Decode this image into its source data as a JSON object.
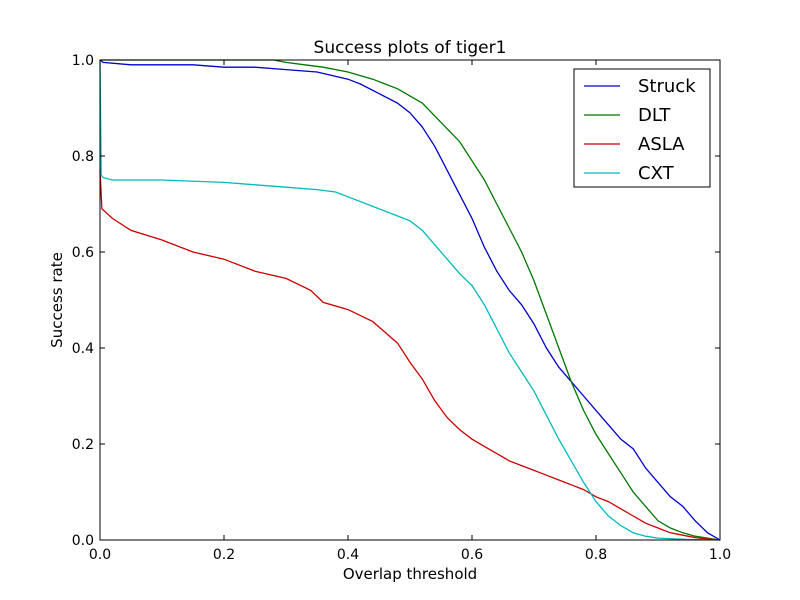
{
  "chart_data": {
    "type": "line",
    "title": "Success plots of tiger1",
    "xlabel": "Overlap threshold",
    "ylabel": "Success rate",
    "xlim": [
      0,
      1
    ],
    "ylim": [
      0,
      1
    ],
    "xticks": [
      "0.0",
      "0.2",
      "0.4",
      "0.6",
      "0.8",
      "1.0"
    ],
    "yticks": [
      "0.0",
      "0.2",
      "0.4",
      "0.6",
      "0.8",
      "1.0"
    ],
    "grid": false,
    "legend_position": "top-right",
    "series": [
      {
        "name": "Struck",
        "color": "#0000cc",
        "x": [
          0,
          0.005,
          0.05,
          0.1,
          0.15,
          0.2,
          0.25,
          0.3,
          0.35,
          0.4,
          0.42,
          0.45,
          0.48,
          0.5,
          0.52,
          0.54,
          0.56,
          0.58,
          0.6,
          0.62,
          0.64,
          0.66,
          0.68,
          0.7,
          0.72,
          0.74,
          0.76,
          0.78,
          0.8,
          0.82,
          0.84,
          0.86,
          0.88,
          0.9,
          0.92,
          0.94,
          0.96,
          0.98,
          1.0
        ],
        "y": [
          1.0,
          0.995,
          0.99,
          0.99,
          0.99,
          0.985,
          0.985,
          0.98,
          0.975,
          0.96,
          0.95,
          0.93,
          0.91,
          0.89,
          0.86,
          0.82,
          0.77,
          0.72,
          0.67,
          0.61,
          0.56,
          0.52,
          0.49,
          0.45,
          0.4,
          0.36,
          0.33,
          0.3,
          0.27,
          0.24,
          0.21,
          0.19,
          0.15,
          0.12,
          0.09,
          0.07,
          0.04,
          0.015,
          0.0
        ]
      },
      {
        "name": "DLT",
        "color": "#007700",
        "x": [
          0,
          0.005,
          0.1,
          0.2,
          0.28,
          0.3,
          0.33,
          0.36,
          0.4,
          0.44,
          0.48,
          0.52,
          0.55,
          0.58,
          0.6,
          0.62,
          0.64,
          0.66,
          0.68,
          0.7,
          0.72,
          0.74,
          0.76,
          0.78,
          0.8,
          0.82,
          0.84,
          0.86,
          0.88,
          0.9,
          0.92,
          0.94,
          0.96,
          0.98,
          1.0
        ],
        "y": [
          1.0,
          1.0,
          1.0,
          1.0,
          1.0,
          0.995,
          0.99,
          0.985,
          0.975,
          0.96,
          0.94,
          0.91,
          0.87,
          0.83,
          0.79,
          0.75,
          0.7,
          0.65,
          0.6,
          0.54,
          0.47,
          0.4,
          0.33,
          0.27,
          0.22,
          0.18,
          0.14,
          0.1,
          0.07,
          0.04,
          0.025,
          0.015,
          0.008,
          0.004,
          0.0
        ]
      },
      {
        "name": "ASLA",
        "color": "#cc0000",
        "x": [
          0,
          0.003,
          0.02,
          0.05,
          0.1,
          0.15,
          0.2,
          0.25,
          0.3,
          0.34,
          0.36,
          0.4,
          0.44,
          0.48,
          0.5,
          0.52,
          0.54,
          0.56,
          0.58,
          0.6,
          0.62,
          0.64,
          0.66,
          0.68,
          0.7,
          0.72,
          0.74,
          0.76,
          0.78,
          0.8,
          0.82,
          0.84,
          0.86,
          0.88,
          0.9,
          0.92,
          0.94,
          0.96,
          0.98,
          1.0
        ],
        "y": [
          0.77,
          0.69,
          0.67,
          0.645,
          0.625,
          0.6,
          0.585,
          0.56,
          0.545,
          0.52,
          0.495,
          0.48,
          0.455,
          0.41,
          0.37,
          0.335,
          0.29,
          0.255,
          0.23,
          0.21,
          0.195,
          0.18,
          0.165,
          0.155,
          0.145,
          0.135,
          0.125,
          0.115,
          0.105,
          0.09,
          0.08,
          0.065,
          0.05,
          0.035,
          0.025,
          0.015,
          0.01,
          0.005,
          0.002,
          0.0
        ]
      },
      {
        "name": "CXT",
        "color": "#00bbbb",
        "x": [
          0,
          0.002,
          0.005,
          0.02,
          0.1,
          0.2,
          0.25,
          0.3,
          0.35,
          0.38,
          0.4,
          0.44,
          0.48,
          0.5,
          0.52,
          0.54,
          0.56,
          0.58,
          0.6,
          0.62,
          0.64,
          0.66,
          0.68,
          0.7,
          0.72,
          0.74,
          0.76,
          0.78,
          0.8,
          0.82,
          0.84,
          0.86,
          0.88,
          0.9,
          0.95,
          1.0
        ],
        "y": [
          1.0,
          0.76,
          0.755,
          0.75,
          0.75,
          0.745,
          0.74,
          0.735,
          0.73,
          0.725,
          0.715,
          0.695,
          0.675,
          0.665,
          0.645,
          0.615,
          0.585,
          0.555,
          0.53,
          0.49,
          0.44,
          0.39,
          0.35,
          0.31,
          0.26,
          0.21,
          0.165,
          0.12,
          0.08,
          0.05,
          0.03,
          0.015,
          0.008,
          0.004,
          0.001,
          0.0
        ]
      }
    ]
  }
}
